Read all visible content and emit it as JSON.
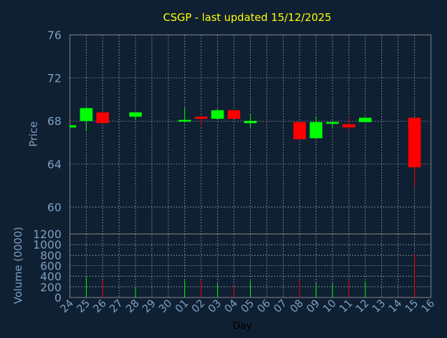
{
  "chart_data": {
    "type": "candlestick",
    "title": "CSGP - last updated 15/12/2025",
    "xlabel": "Day",
    "price_panel": {
      "ylabel": "Price",
      "ylim": [
        57.5,
        76
      ],
      "yticks": [
        60,
        64,
        68,
        72,
        76
      ],
      "grid": true
    },
    "volume_panel": {
      "ylabel": "Volume (0000)",
      "ylim": [
        0,
        1200
      ],
      "yticks": [
        0,
        200,
        400,
        600,
        800,
        1000,
        1200
      ],
      "grid": true
    },
    "x_tick_labels": [
      "24",
      "25",
      "26",
      "27",
      "28",
      "29",
      "30",
      "01",
      "02",
      "03",
      "04",
      "05",
      "06",
      "07",
      "08",
      "09",
      "10",
      "11",
      "12",
      "13",
      "14",
      "15",
      "16"
    ],
    "colors": {
      "up": "#00ff00",
      "down": "#ff0000",
      "title": "#ffff00",
      "axis_text": "#7f9fbf",
      "background": "#0f2033",
      "grid": "#ffffff"
    },
    "candles": [
      {
        "day": "24",
        "open": 67.4,
        "close": 67.6,
        "high": 67.6,
        "low": 67.4
      },
      {
        "day": "25",
        "open": 68.0,
        "close": 69.2,
        "high": 69.3,
        "low": 67.1
      },
      {
        "day": "26",
        "open": 68.8,
        "close": 67.8,
        "high": 68.8,
        "low": 67.8
      },
      {
        "day": "28",
        "open": 68.4,
        "close": 68.8,
        "high": 68.8,
        "low": 68.1
      },
      {
        "day": "01",
        "open": 68.0,
        "close": 68.1,
        "high": 69.3,
        "low": 67.9
      },
      {
        "day": "02",
        "open": 68.4,
        "close": 68.2,
        "high": 68.5,
        "low": 67.6
      },
      {
        "day": "03",
        "open": 68.2,
        "close": 69.0,
        "high": 69.1,
        "low": 68.2
      },
      {
        "day": "04",
        "open": 69.0,
        "close": 68.2,
        "high": 69.0,
        "low": 68.2
      },
      {
        "day": "05",
        "open": 67.8,
        "close": 68.0,
        "high": 68.6,
        "low": 67.4
      },
      {
        "day": "08",
        "open": 67.9,
        "close": 66.3,
        "high": 67.9,
        "low": 66.3
      },
      {
        "day": "09",
        "open": 66.4,
        "close": 67.9,
        "high": 68.4,
        "low": 66.4
      },
      {
        "day": "10",
        "open": 67.8,
        "close": 67.9,
        "high": 68.0,
        "low": 67.3
      },
      {
        "day": "11",
        "open": 67.7,
        "close": 67.4,
        "high": 68.4,
        "low": 67.1
      },
      {
        "day": "12",
        "open": 67.9,
        "close": 68.3,
        "high": 68.3,
        "low": 67.9
      },
      {
        "day": "15",
        "open": 68.3,
        "close": 63.7,
        "high": 68.3,
        "low": 61.9
      }
    ],
    "volume": [
      {
        "day": "25",
        "value": 380,
        "dir": "up"
      },
      {
        "day": "26",
        "value": 330,
        "dir": "down"
      },
      {
        "day": "28",
        "value": 200,
        "dir": "up"
      },
      {
        "day": "01",
        "value": 320,
        "dir": "up"
      },
      {
        "day": "02",
        "value": 320,
        "dir": "down"
      },
      {
        "day": "03",
        "value": 270,
        "dir": "up"
      },
      {
        "day": "04",
        "value": 230,
        "dir": "down"
      },
      {
        "day": "05",
        "value": 320,
        "dir": "up"
      },
      {
        "day": "08",
        "value": 340,
        "dir": "down"
      },
      {
        "day": "09",
        "value": 280,
        "dir": "up"
      },
      {
        "day": "10",
        "value": 270,
        "dir": "up"
      },
      {
        "day": "11",
        "value": 340,
        "dir": "down"
      },
      {
        "day": "12",
        "value": 310,
        "dir": "up"
      },
      {
        "day": "15",
        "value": 830,
        "dir": "down"
      }
    ]
  }
}
